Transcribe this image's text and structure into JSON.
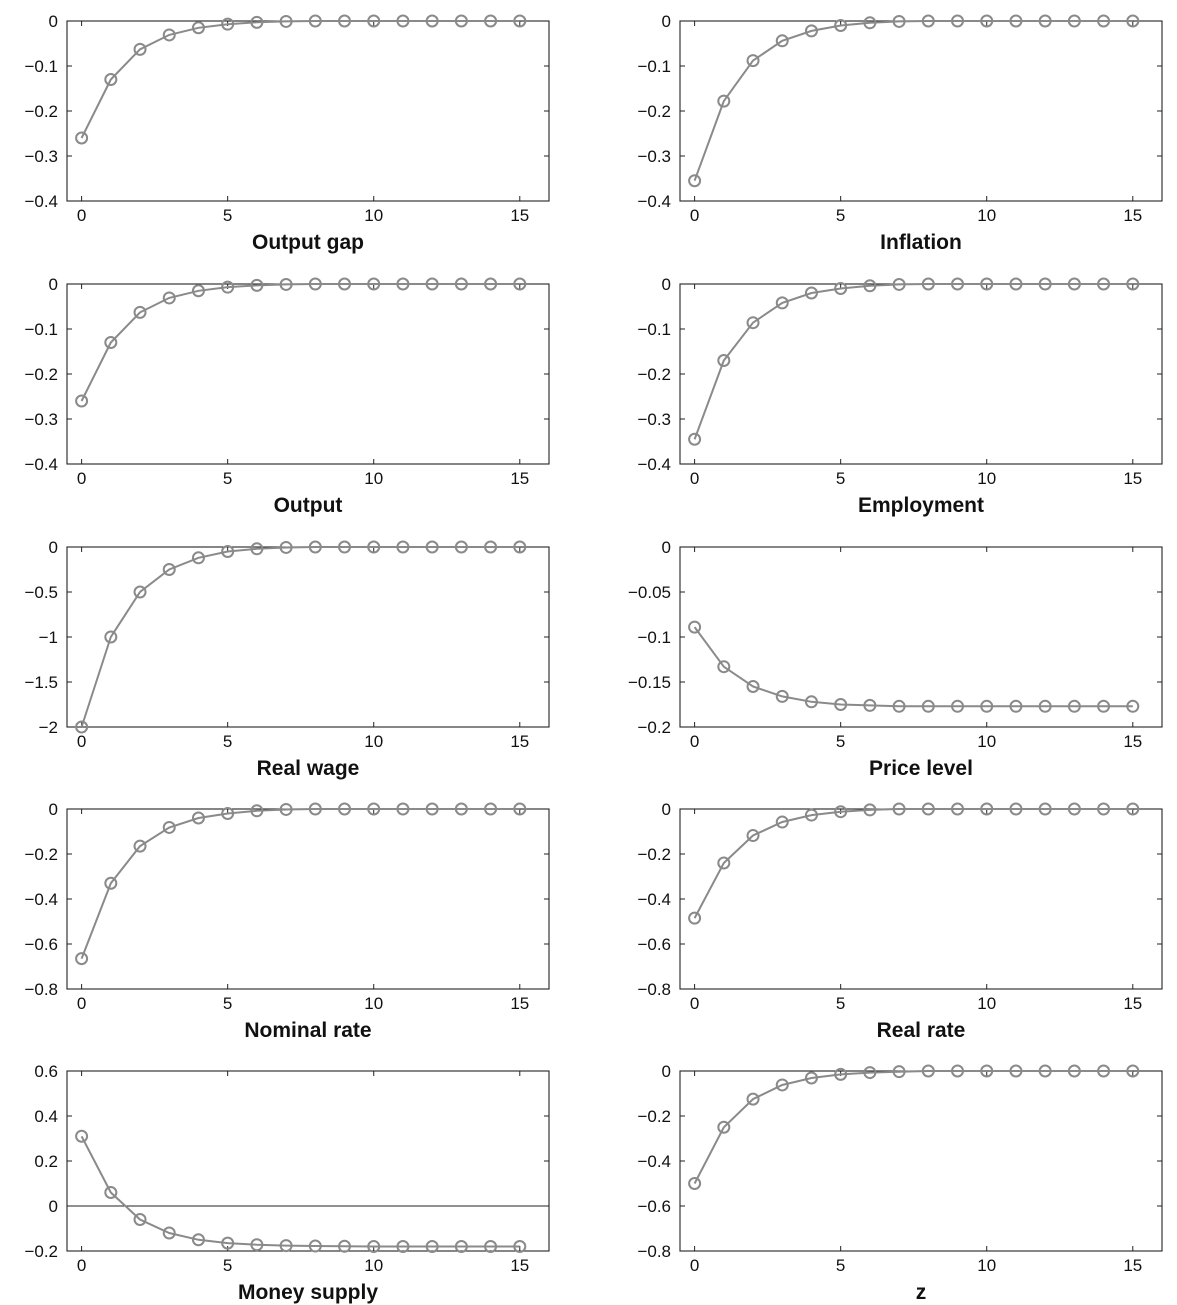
{
  "figure_title": "",
  "style": {
    "line_color": "#8a8a8a",
    "axis_color": "#222222",
    "text_color": "#111111"
  },
  "chart_data": [
    {
      "id": "output-gap",
      "type": "line",
      "title": "Output gap",
      "xlim": [
        -0.5,
        16
      ],
      "ylim": [
        -0.4,
        0
      ],
      "xticks": [
        0,
        5,
        10,
        15
      ],
      "yticks": [
        0,
        -0.1,
        -0.2,
        -0.3,
        -0.4
      ],
      "ytick_labels": [
        "0",
        "-0.1",
        "-0.2",
        "-0.3",
        "-0.4"
      ],
      "x": [
        0,
        1,
        2,
        3,
        4,
        5,
        6,
        7,
        8,
        9,
        10,
        11,
        12,
        13,
        14,
        15
      ],
      "y": [
        -0.26,
        -0.13,
        -0.063,
        -0.031,
        -0.015,
        -0.007,
        -0.003,
        -0.001,
        0,
        0,
        0,
        0,
        0,
        0,
        0,
        0
      ]
    },
    {
      "id": "inflation",
      "type": "line",
      "title": "Inflation",
      "xlim": [
        -0.5,
        16
      ],
      "ylim": [
        -0.4,
        0
      ],
      "xticks": [
        0,
        5,
        10,
        15
      ],
      "yticks": [
        0,
        -0.1,
        -0.2,
        -0.3,
        -0.4
      ],
      "ytick_labels": [
        "0",
        "-0.1",
        "-0.2",
        "-0.3",
        "-0.4"
      ],
      "x": [
        0,
        1,
        2,
        3,
        4,
        5,
        6,
        7,
        8,
        9,
        10,
        11,
        12,
        13,
        14,
        15
      ],
      "y": [
        -0.355,
        -0.178,
        -0.088,
        -0.044,
        -0.022,
        -0.01,
        -0.004,
        -0.001,
        0,
        0,
        0,
        0,
        0,
        0,
        0,
        0
      ]
    },
    {
      "id": "output",
      "type": "line",
      "title": "Output",
      "xlim": [
        -0.5,
        16
      ],
      "ylim": [
        -0.4,
        0
      ],
      "xticks": [
        0,
        5,
        10,
        15
      ],
      "yticks": [
        0,
        -0.1,
        -0.2,
        -0.3,
        -0.4
      ],
      "ytick_labels": [
        "0",
        "-0.1",
        "-0.2",
        "-0.3",
        "-0.4"
      ],
      "x": [
        0,
        1,
        2,
        3,
        4,
        5,
        6,
        7,
        8,
        9,
        10,
        11,
        12,
        13,
        14,
        15
      ],
      "y": [
        -0.26,
        -0.13,
        -0.063,
        -0.031,
        -0.015,
        -0.007,
        -0.003,
        -0.001,
        0,
        0,
        0,
        0,
        0,
        0,
        0,
        0
      ]
    },
    {
      "id": "employment",
      "type": "line",
      "title": "Employment",
      "xlim": [
        -0.5,
        16
      ],
      "ylim": [
        -0.4,
        0
      ],
      "xticks": [
        0,
        5,
        10,
        15
      ],
      "yticks": [
        0,
        -0.1,
        -0.2,
        -0.3,
        -0.4
      ],
      "ytick_labels": [
        "0",
        "-0.1",
        "-0.2",
        "-0.3",
        "-0.4"
      ],
      "x": [
        0,
        1,
        2,
        3,
        4,
        5,
        6,
        7,
        8,
        9,
        10,
        11,
        12,
        13,
        14,
        15
      ],
      "y": [
        -0.345,
        -0.17,
        -0.086,
        -0.042,
        -0.02,
        -0.01,
        -0.004,
        -0.001,
        0,
        0,
        0,
        0,
        0,
        0,
        0,
        0
      ]
    },
    {
      "id": "real-wage",
      "type": "line",
      "title": "Real wage",
      "xlim": [
        -0.5,
        16
      ],
      "ylim": [
        -2,
        0
      ],
      "xticks": [
        0,
        5,
        10,
        15
      ],
      "yticks": [
        0,
        -0.5,
        -1,
        -1.5,
        -2
      ],
      "ytick_labels": [
        "0",
        "-0.5",
        "-1",
        "-1.5",
        "-2"
      ],
      "x": [
        0,
        1,
        2,
        3,
        4,
        5,
        6,
        7,
        8,
        9,
        10,
        11,
        12,
        13,
        14,
        15
      ],
      "y": [
        -2,
        -1,
        -0.5,
        -0.25,
        -0.12,
        -0.05,
        -0.02,
        -0.005,
        0,
        0,
        0,
        0,
        0,
        0,
        0,
        0
      ]
    },
    {
      "id": "price-level",
      "type": "line",
      "title": "Price level",
      "xlim": [
        -0.5,
        16
      ],
      "ylim": [
        -0.2,
        0
      ],
      "xticks": [
        0,
        5,
        10,
        15
      ],
      "yticks": [
        0,
        -0.05,
        -0.1,
        -0.15,
        -0.2
      ],
      "ytick_labels": [
        "0",
        "-0.05",
        "-0.1",
        "-0.15",
        "-0.2"
      ],
      "x": [
        0,
        1,
        2,
        3,
        4,
        5,
        6,
        7,
        8,
        9,
        10,
        11,
        12,
        13,
        14,
        15
      ],
      "y": [
        -0.089,
        -0.133,
        -0.155,
        -0.166,
        -0.172,
        -0.175,
        -0.176,
        -0.177,
        -0.177,
        -0.177,
        -0.177,
        -0.177,
        -0.177,
        -0.177,
        -0.177,
        -0.177
      ]
    },
    {
      "id": "nominal-rate",
      "type": "line",
      "title": "Nominal rate",
      "xlim": [
        -0.5,
        16
      ],
      "ylim": [
        -0.8,
        0
      ],
      "xticks": [
        0,
        5,
        10,
        15
      ],
      "yticks": [
        0,
        -0.2,
        -0.4,
        -0.6,
        -0.8
      ],
      "ytick_labels": [
        "0",
        "-0.2",
        "-0.4",
        "-0.6",
        "-0.8"
      ],
      "x": [
        0,
        1,
        2,
        3,
        4,
        5,
        6,
        7,
        8,
        9,
        10,
        11,
        12,
        13,
        14,
        15
      ],
      "y": [
        -0.665,
        -0.33,
        -0.165,
        -0.082,
        -0.04,
        -0.02,
        -0.008,
        -0.002,
        0,
        0,
        0,
        0,
        0,
        0,
        0,
        0
      ]
    },
    {
      "id": "real-rate",
      "type": "line",
      "title": "Real rate",
      "xlim": [
        -0.5,
        16
      ],
      "ylim": [
        -0.8,
        0
      ],
      "xticks": [
        0,
        5,
        10,
        15
      ],
      "yticks": [
        0,
        -0.2,
        -0.4,
        -0.6,
        -0.8
      ],
      "ytick_labels": [
        "0",
        "-0.2",
        "-0.4",
        "-0.6",
        "-0.8"
      ],
      "x": [
        0,
        1,
        2,
        3,
        4,
        5,
        6,
        7,
        8,
        9,
        10,
        11,
        12,
        13,
        14,
        15
      ],
      "y": [
        -0.485,
        -0.24,
        -0.118,
        -0.058,
        -0.027,
        -0.012,
        -0.004,
        0,
        0,
        0,
        0,
        0,
        0,
        0,
        0,
        0
      ]
    },
    {
      "id": "money-supply",
      "type": "line",
      "title": "Money supply",
      "xlim": [
        -0.5,
        16
      ],
      "ylim": [
        -0.2,
        0.6
      ],
      "xticks": [
        0,
        5,
        10,
        15
      ],
      "yticks": [
        0.6,
        0.4,
        0.2,
        0,
        -0.2
      ],
      "ytick_labels": [
        "0.6",
        "0.4",
        "0.2",
        "0",
        "-0.2"
      ],
      "x": [
        0,
        1,
        2,
        3,
        4,
        5,
        6,
        7,
        8,
        9,
        10,
        11,
        12,
        13,
        14,
        15
      ],
      "y": [
        0.31,
        0.06,
        -0.06,
        -0.12,
        -0.15,
        -0.165,
        -0.172,
        -0.176,
        -0.178,
        -0.179,
        -0.18,
        -0.18,
        -0.18,
        -0.18,
        -0.18,
        -0.18
      ]
    },
    {
      "id": "z",
      "type": "line",
      "title": "z",
      "xlim": [
        -0.5,
        16
      ],
      "ylim": [
        -0.8,
        0
      ],
      "xticks": [
        0,
        5,
        10,
        15
      ],
      "yticks": [
        0,
        -0.2,
        -0.4,
        -0.6,
        -0.8
      ],
      "ytick_labels": [
        "0",
        "-0.2",
        "-0.4",
        "-0.6",
        "-0.8"
      ],
      "x": [
        0,
        1,
        2,
        3,
        4,
        5,
        6,
        7,
        8,
        9,
        10,
        11,
        12,
        13,
        14,
        15
      ],
      "y": [
        -0.5,
        -0.25,
        -0.125,
        -0.062,
        -0.031,
        -0.015,
        -0.007,
        -0.003,
        0,
        0,
        0,
        0,
        0,
        0,
        0,
        0
      ]
    }
  ]
}
